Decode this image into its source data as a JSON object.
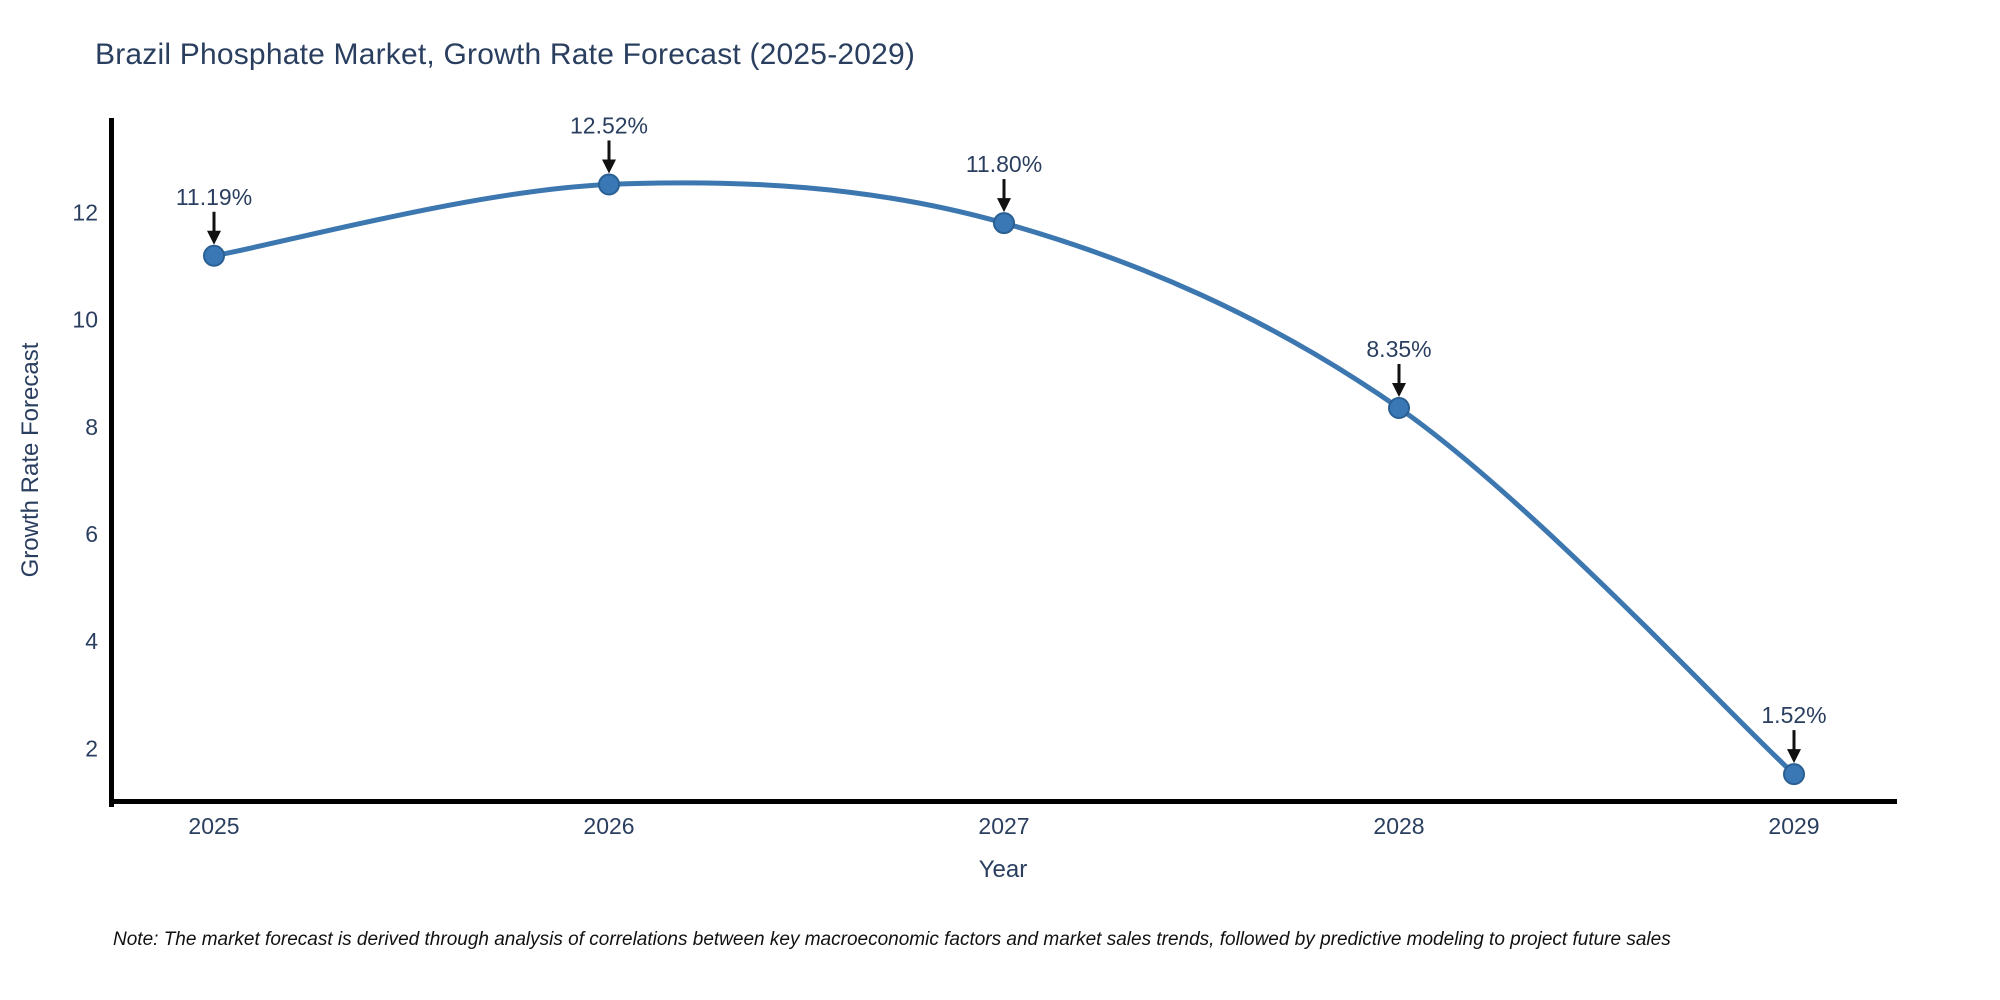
{
  "title": "Brazil Phosphate Market, Growth Rate Forecast (2025-2029)",
  "note": "Note: The market forecast is derived through analysis of correlations between key macroeconomic factors and market sales trends, followed by predictive modeling to project future sales",
  "chart_data": {
    "type": "line",
    "title": "Brazil Phosphate Market, Growth Rate Forecast (2025-2029)",
    "xlabel": "Year",
    "ylabel": "Growth Rate Forecast",
    "x": [
      2025,
      2026,
      2027,
      2028,
      2029
    ],
    "values": [
      11.19,
      12.52,
      11.8,
      8.35,
      1.52
    ],
    "point_labels": [
      "11.19%",
      "12.52%",
      "11.80%",
      "8.35%",
      "1.52%"
    ],
    "y_ticks": [
      2,
      4,
      6,
      8,
      10,
      12
    ],
    "ylim": [
      1.0,
      13.76
    ],
    "grid": false,
    "legend": "none",
    "line_shape": "spline",
    "annotation_style": "label-above-with-down-arrow",
    "colors": {
      "line": "#3c77b0",
      "marker": "#3a78b5",
      "marker_border": "#2a5f93",
      "axis": "#111111",
      "text": "#2a3f5f",
      "annotation_arrow": "#111111",
      "note_text": "#111111"
    }
  }
}
